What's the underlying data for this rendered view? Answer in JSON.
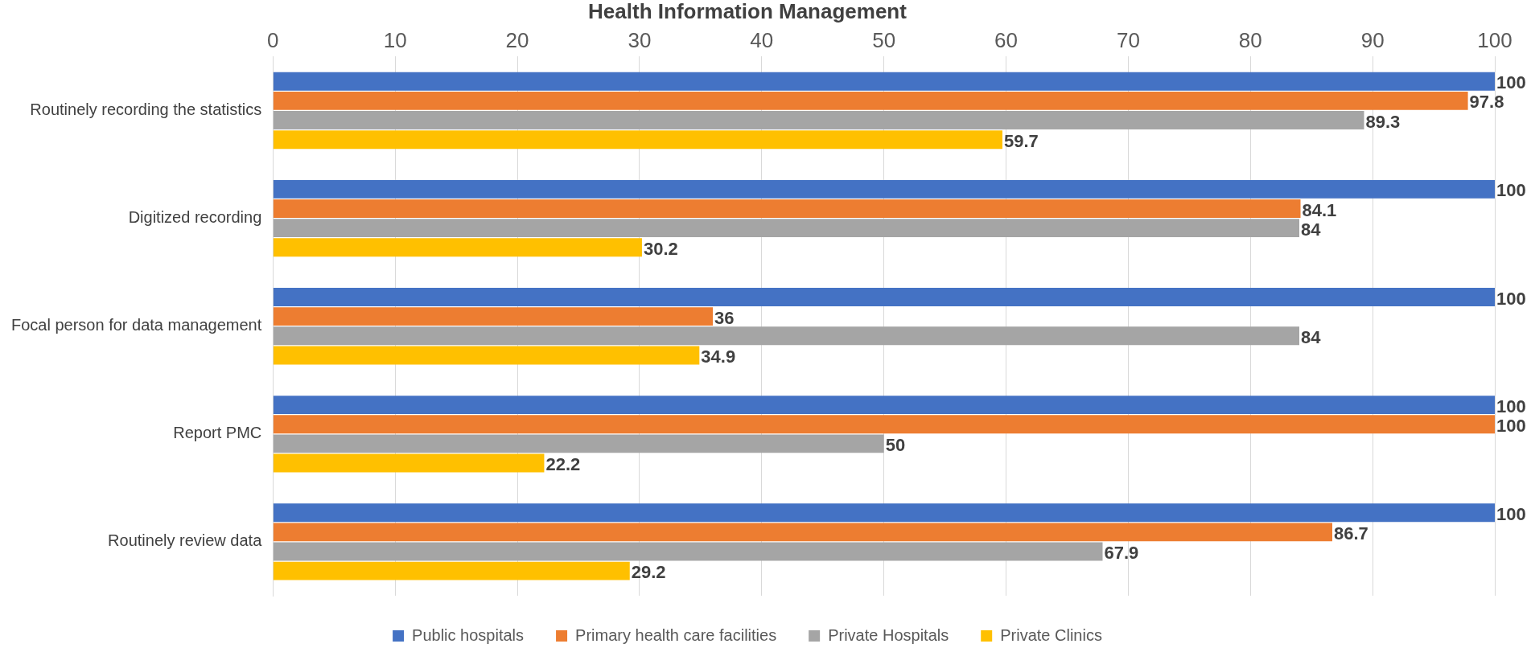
{
  "chart_data": {
    "type": "bar",
    "orientation": "horizontal",
    "title": "Health Information Management",
    "categories": [
      "Routinely recording the statistics",
      "Digitized recording",
      "Focal person for data management",
      "Report PMC",
      "Routinely review data"
    ],
    "series": [
      {
        "name": "Public hospitals",
        "color": "#4472c4",
        "values": [
          100,
          100,
          100,
          100,
          100
        ]
      },
      {
        "name": "Primary health care facilities",
        "color": "#ed7d31",
        "values": [
          97.8,
          84.1,
          36,
          100,
          86.7
        ]
      },
      {
        "name": "Private Hospitals",
        "color": "#a5a5a5",
        "values": [
          89.3,
          84,
          84,
          50,
          67.9
        ]
      },
      {
        "name": "Private Clinics",
        "color": "#ffc000",
        "values": [
          59.7,
          30.2,
          34.9,
          22.2,
          29.2
        ]
      }
    ],
    "xlim": [
      0,
      100
    ],
    "xticks": [
      0,
      10,
      20,
      30,
      40,
      50,
      60,
      70,
      80,
      90,
      100
    ],
    "grid": "x",
    "legend": "bottom",
    "data_labels": true
  }
}
